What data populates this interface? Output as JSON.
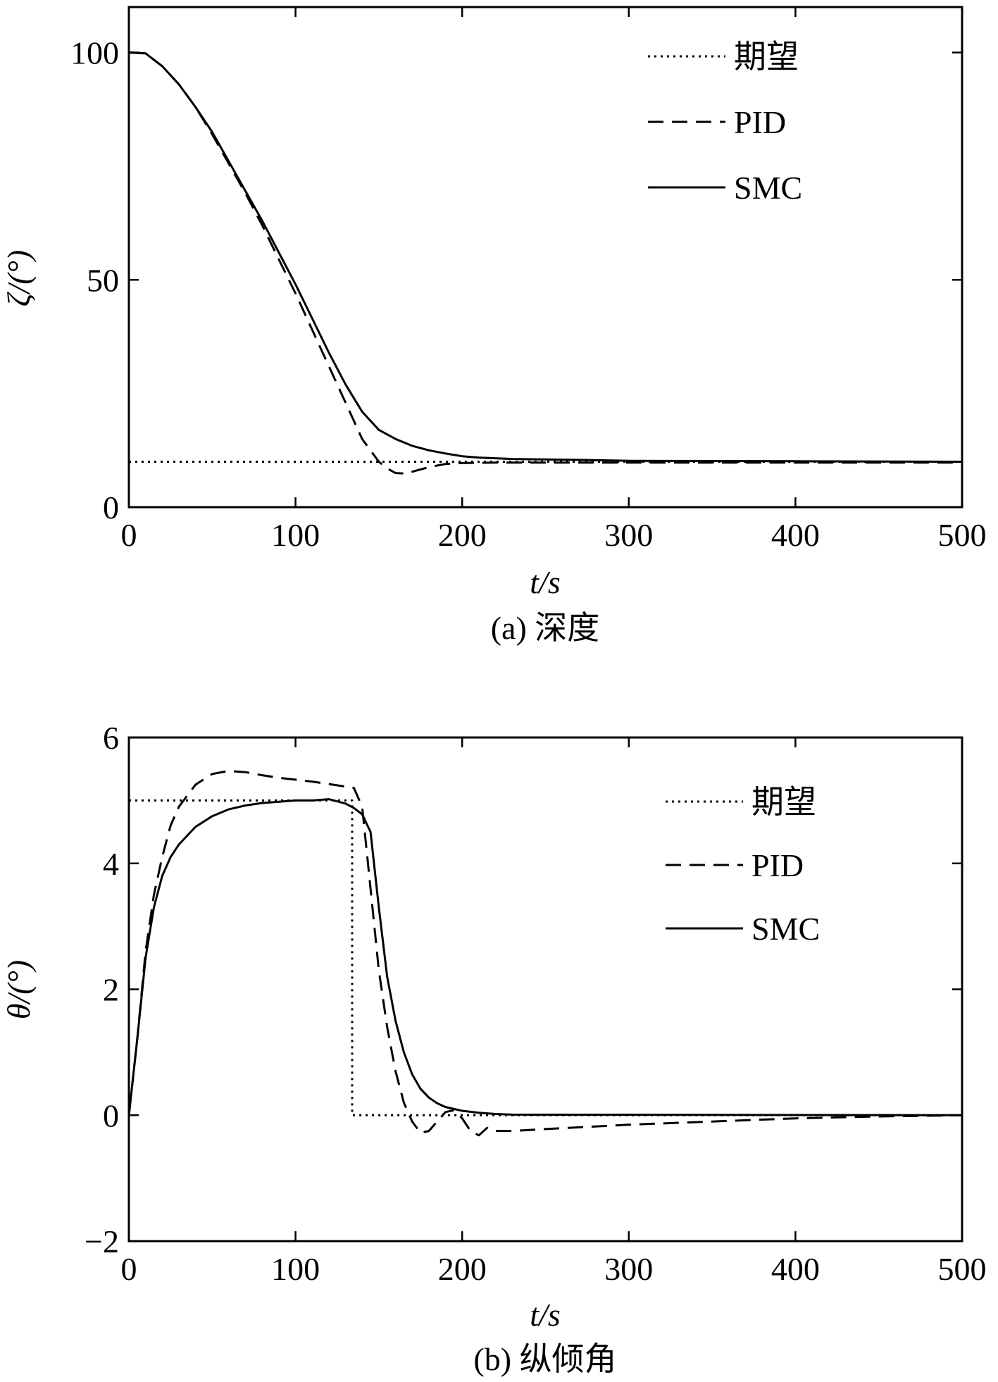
{
  "chart_data": [
    {
      "type": "line",
      "caption": "(a) 深度",
      "xlabel": "t/s",
      "ylabel": "ζ/(°)",
      "xlim": [
        0,
        500
      ],
      "ylim": [
        0,
        110
      ],
      "xticks": [
        0,
        100,
        200,
        300,
        400,
        500
      ],
      "yticks": [
        0,
        50,
        100
      ],
      "xtick_labels": [
        "0",
        "100",
        "200",
        "300",
        "400",
        "500"
      ],
      "ytick_labels": [
        "0",
        "50",
        "100"
      ],
      "legend_position": "top-right",
      "grid": false,
      "series": [
        {
          "name": "期望",
          "style": "dotted",
          "x": [
            0,
            500
          ],
          "y": [
            10,
            10
          ]
        },
        {
          "name": "PID",
          "style": "dashed",
          "x": [
            0,
            10,
            20,
            30,
            40,
            50,
            60,
            70,
            80,
            90,
            100,
            110,
            120,
            130,
            140,
            150,
            155,
            160,
            165,
            170,
            180,
            190,
            200,
            220,
            250,
            300,
            400,
            500
          ],
          "y": [
            100,
            99.8,
            97,
            93,
            88,
            82,
            75.5,
            69,
            62,
            54.5,
            47,
            39,
            31,
            23,
            15,
            10,
            8.5,
            7.5,
            7.4,
            7.8,
            8.8,
            9.5,
            9.7,
            9.8,
            9.8,
            9.8,
            9.8,
            9.8
          ]
        },
        {
          "name": "SMC",
          "style": "solid",
          "x": [
            0,
            10,
            20,
            30,
            40,
            50,
            60,
            70,
            80,
            90,
            100,
            110,
            120,
            130,
            140,
            150,
            160,
            170,
            180,
            190,
            200,
            210,
            230,
            270,
            300,
            400,
            500
          ],
          "y": [
            100,
            99.8,
            97,
            93,
            88,
            82.5,
            76,
            69.5,
            63,
            56,
            49,
            41.5,
            34,
            27,
            21,
            17,
            15,
            13.5,
            12.5,
            11.8,
            11.2,
            10.9,
            10.6,
            10.4,
            10.2,
            10.1,
            10
          ]
        }
      ]
    },
    {
      "type": "line",
      "caption": "(b) 纵倾角",
      "xlabel": "t/s",
      "ylabel": "θ/(°)",
      "xlim": [
        0,
        500
      ],
      "ylim": [
        -2,
        6
      ],
      "xticks": [
        0,
        100,
        200,
        300,
        400,
        500
      ],
      "yticks": [
        -2,
        0,
        2,
        4,
        6
      ],
      "xtick_labels": [
        "0",
        "100",
        "200",
        "300",
        "400",
        "500"
      ],
      "ytick_labels": [
        "−2",
        "0",
        "2",
        "4",
        "6"
      ],
      "legend_position": "top-right",
      "grid": false,
      "series": [
        {
          "name": "期望",
          "style": "dotted",
          "x": [
            0,
            134,
            134,
            500
          ],
          "y": [
            5,
            5,
            0,
            0
          ]
        },
        {
          "name": "PID",
          "style": "dashed",
          "x": [
            0,
            5,
            10,
            15,
            20,
            25,
            30,
            40,
            50,
            60,
            70,
            80,
            90,
            100,
            110,
            120,
            130,
            135,
            140,
            145,
            150,
            155,
            160,
            165,
            170,
            175,
            180,
            185,
            190,
            195,
            200,
            205,
            210,
            215,
            220,
            230,
            250,
            300,
            350,
            400,
            450,
            500
          ],
          "y": [
            0,
            1.2,
            2.6,
            3.5,
            4.1,
            4.6,
            4.9,
            5.25,
            5.42,
            5.47,
            5.45,
            5.4,
            5.36,
            5.33,
            5.3,
            5.26,
            5.22,
            5.2,
            4.9,
            3.6,
            2.3,
            1.4,
            0.7,
            0.2,
            -0.1,
            -0.28,
            -0.25,
            -0.1,
            0.05,
            0.08,
            -0.05,
            -0.25,
            -0.32,
            -0.2,
            -0.25,
            -0.25,
            -0.22,
            -0.15,
            -0.1,
            -0.05,
            -0.02,
            0
          ]
        },
        {
          "name": "SMC",
          "style": "solid",
          "x": [
            0,
            5,
            10,
            15,
            20,
            25,
            30,
            40,
            50,
            60,
            70,
            80,
            90,
            100,
            110,
            120,
            130,
            135,
            140,
            145,
            150,
            155,
            160,
            165,
            170,
            175,
            180,
            185,
            190,
            200,
            210,
            220,
            230,
            500
          ],
          "y": [
            0,
            1.2,
            2.5,
            3.3,
            3.8,
            4.1,
            4.3,
            4.58,
            4.75,
            4.86,
            4.92,
            4.96,
            4.98,
            5.0,
            5.0,
            5.02,
            4.95,
            4.88,
            4.78,
            4.5,
            3.3,
            2.2,
            1.5,
            1.0,
            0.65,
            0.42,
            0.28,
            0.19,
            0.13,
            0.07,
            0.04,
            0.02,
            0.01,
            0
          ]
        }
      ]
    }
  ]
}
